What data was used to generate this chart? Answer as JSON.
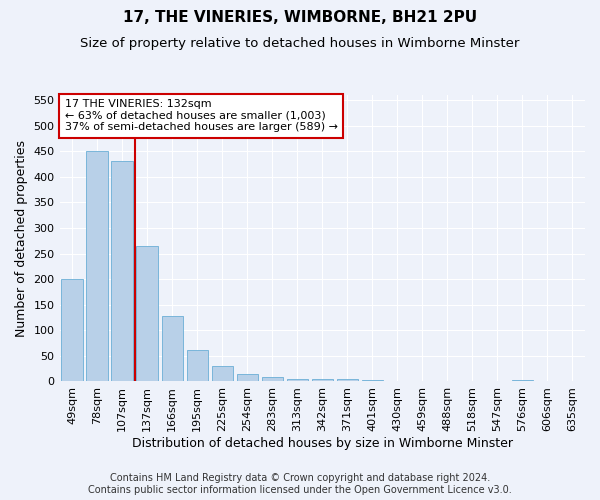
{
  "title": "17, THE VINERIES, WIMBORNE, BH21 2PU",
  "subtitle": "Size of property relative to detached houses in Wimborne Minster",
  "xlabel": "Distribution of detached houses by size in Wimborne Minster",
  "ylabel": "Number of detached properties",
  "footer_line1": "Contains HM Land Registry data © Crown copyright and database right 2024.",
  "footer_line2": "Contains public sector information licensed under the Open Government Licence v3.0.",
  "bar_labels": [
    "49sqm",
    "78sqm",
    "107sqm",
    "137sqm",
    "166sqm",
    "195sqm",
    "225sqm",
    "254sqm",
    "283sqm",
    "313sqm",
    "342sqm",
    "371sqm",
    "401sqm",
    "430sqm",
    "459sqm",
    "488sqm",
    "518sqm",
    "547sqm",
    "576sqm",
    "606sqm",
    "635sqm"
  ],
  "bar_values": [
    200,
    450,
    430,
    265,
    128,
    62,
    31,
    15,
    8,
    5,
    4,
    4,
    2,
    1,
    0,
    0,
    0,
    0,
    3,
    0,
    0
  ],
  "bar_color": "#b8d0e8",
  "bar_edge_color": "#6aaed6",
  "property_line_color": "#cc0000",
  "property_line_x": 2.5,
  "annotation_text_line1": "17 THE VINERIES: 132sqm",
  "annotation_text_line2": "← 63% of detached houses are smaller (1,003)",
  "annotation_text_line3": "37% of semi-detached houses are larger (589) →",
  "annotation_box_color": "#cc0000",
  "ylim": [
    0,
    560
  ],
  "yticks": [
    0,
    50,
    100,
    150,
    200,
    250,
    300,
    350,
    400,
    450,
    500,
    550
  ],
  "background_color": "#eef2fa",
  "grid_color": "#ffffff",
  "title_fontsize": 11,
  "subtitle_fontsize": 9.5,
  "xlabel_fontsize": 9,
  "ylabel_fontsize": 9,
  "tick_fontsize": 8,
  "annotation_fontsize": 8,
  "footer_fontsize": 7
}
